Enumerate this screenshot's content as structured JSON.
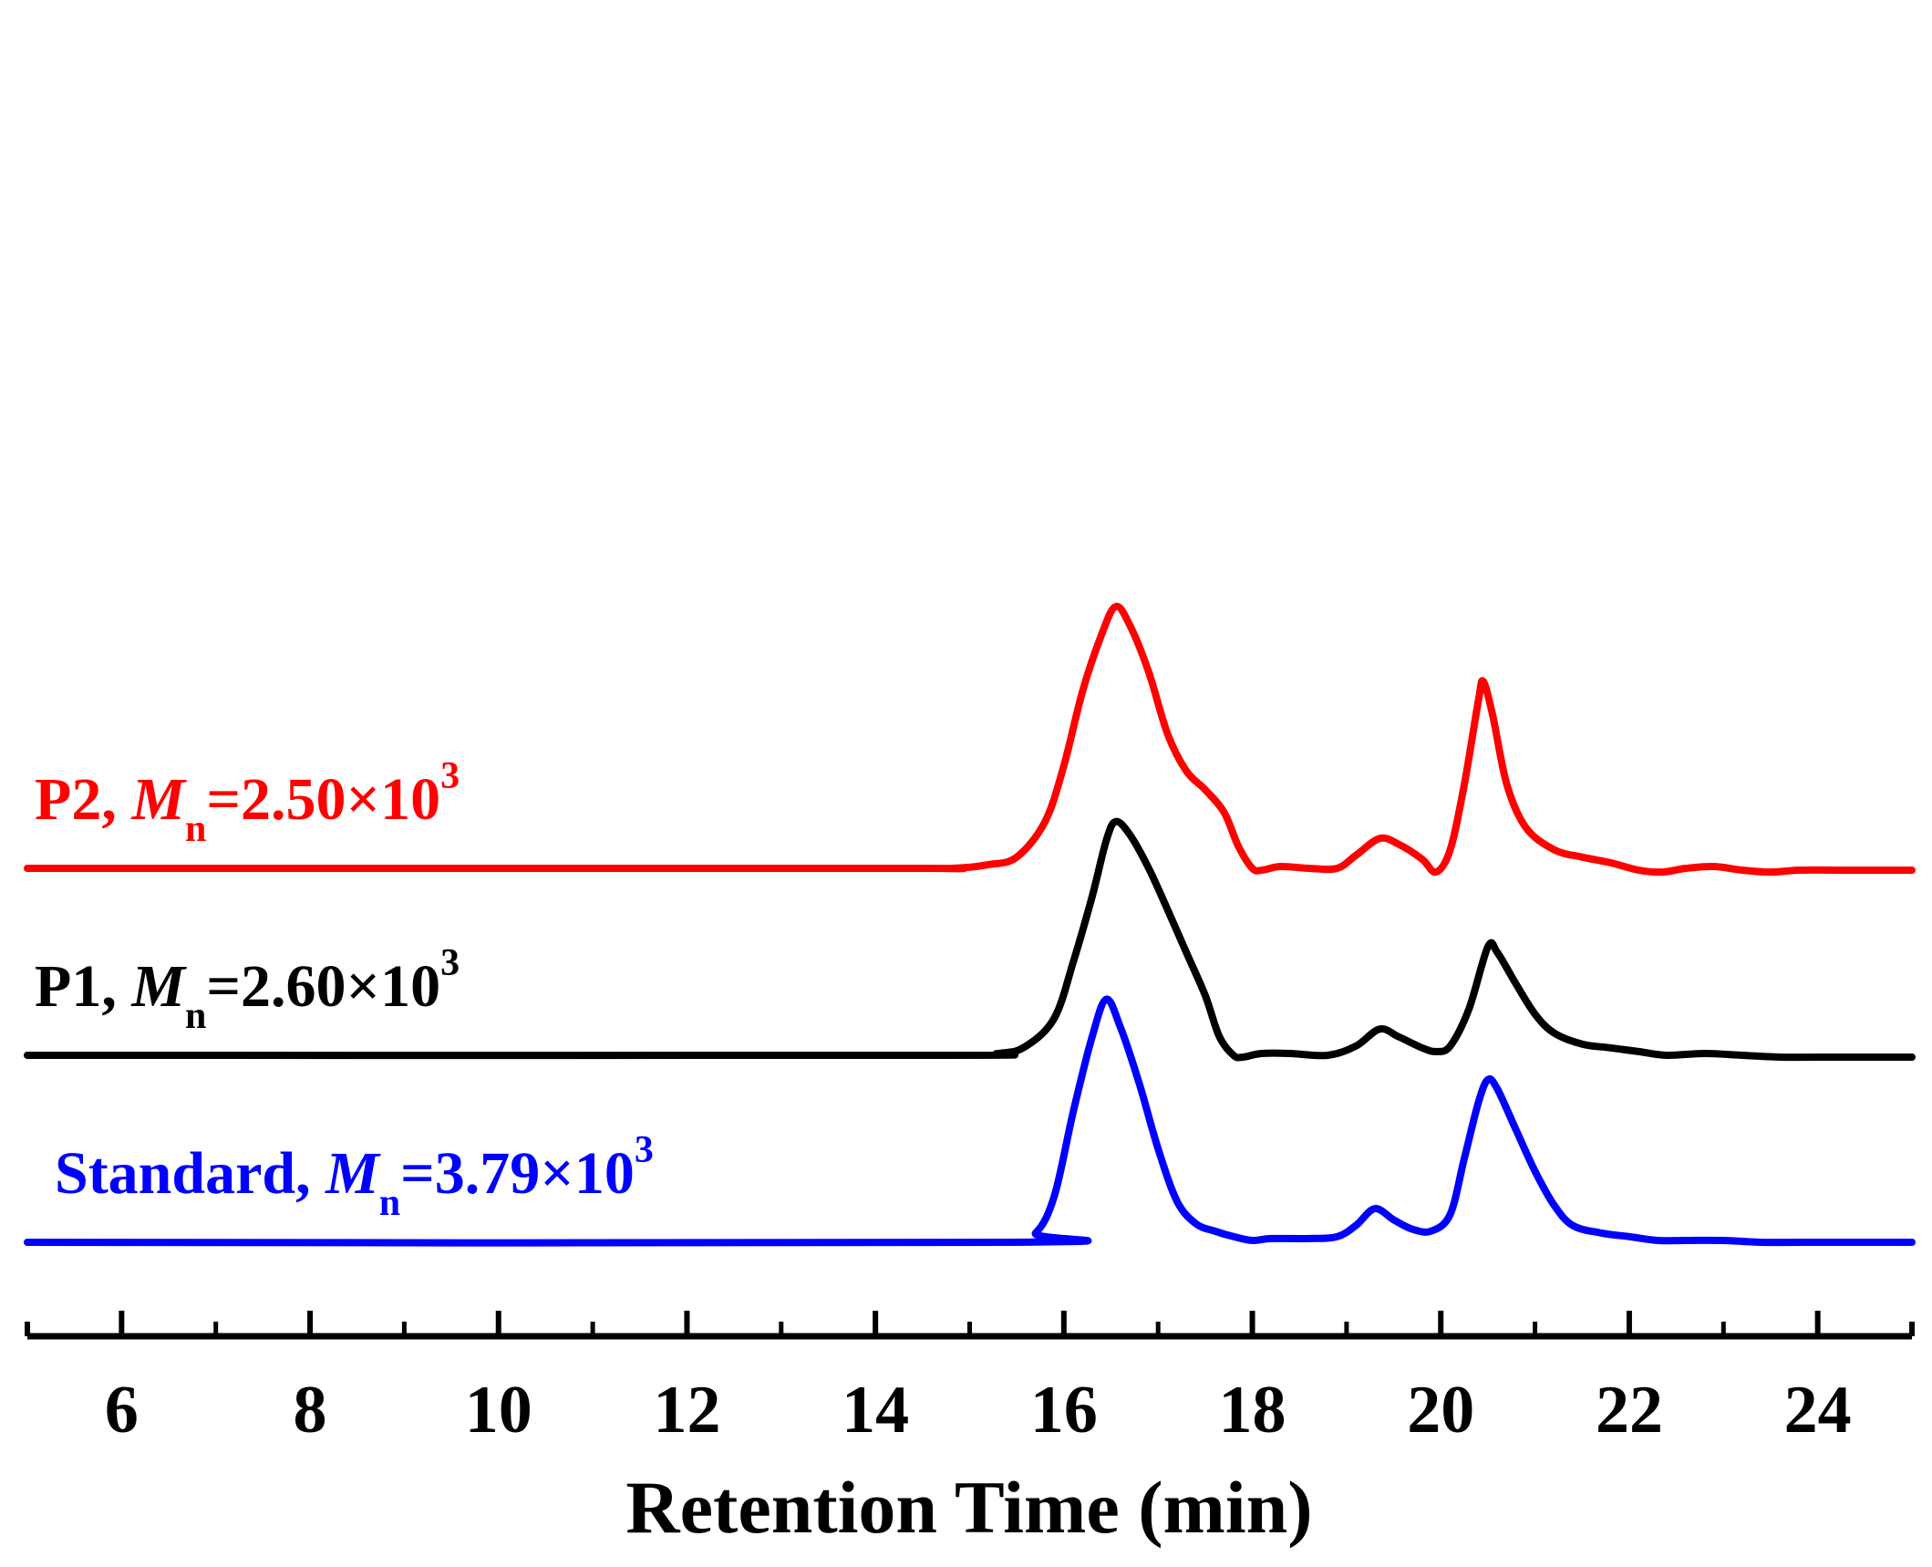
{
  "chart_data": {
    "type": "line",
    "title": "",
    "xlabel": "Retention Time (min)",
    "ylabel": "",
    "xlim": [
      5,
      25
    ],
    "x_ticks": [
      6,
      8,
      10,
      12,
      14,
      16,
      18,
      20,
      22,
      24
    ],
    "x_tick_labels": [
      "6",
      "8",
      "10",
      "12",
      "14",
      "16",
      "18",
      "20",
      "22",
      "24"
    ],
    "y_axis": "none (traces vertically offset, arbitrary units)",
    "grid": false,
    "series": [
      {
        "name": "P2",
        "legend_prefix": "P2, ",
        "legend_mn": "M",
        "legend_sub": "n",
        "legend_value": "=2.50×10",
        "legend_sup": "3",
        "color": "#ff0000",
        "offset": 2.0,
        "x": [
          5.0,
          14.0,
          14.8,
          15.2,
          15.5,
          15.8,
          16.0,
          16.2,
          16.4,
          16.55,
          16.7,
          16.9,
          17.1,
          17.3,
          17.5,
          17.7,
          17.85,
          18.0,
          18.1,
          18.3,
          18.6,
          18.9,
          19.1,
          19.35,
          19.55,
          19.8,
          19.95,
          20.1,
          20.25,
          20.4,
          20.45,
          20.55,
          20.7,
          20.9,
          21.2,
          21.5,
          21.8,
          22.1,
          22.35,
          22.6,
          22.9,
          23.2,
          23.5,
          23.8,
          24.2,
          24.6,
          25.0
        ],
        "y": [
          0.0,
          0.0,
          0.0,
          0.02,
          0.06,
          0.25,
          0.55,
          0.95,
          1.25,
          1.4,
          1.3,
          1.05,
          0.72,
          0.52,
          0.42,
          0.3,
          0.12,
          0.0,
          -0.01,
          0.01,
          0.0,
          0.0,
          0.07,
          0.16,
          0.13,
          0.05,
          -0.02,
          0.1,
          0.45,
          0.9,
          1.0,
          0.82,
          0.45,
          0.22,
          0.1,
          0.06,
          0.03,
          -0.01,
          -0.02,
          0.0,
          0.01,
          -0.01,
          -0.02,
          -0.01,
          -0.01,
          -0.01,
          -0.01
        ]
      },
      {
        "name": "P1",
        "legend_prefix": "P1, ",
        "legend_mn": "M",
        "legend_sub": "n",
        "legend_value": "=2.60×10",
        "legend_sup": "3",
        "color": "#000000",
        "offset": 1.0,
        "x": [
          5.0,
          14.5,
          15.3,
          15.6,
          15.9,
          16.1,
          16.3,
          16.45,
          16.55,
          16.7,
          16.9,
          17.1,
          17.3,
          17.5,
          17.65,
          17.8,
          17.9,
          18.1,
          18.4,
          18.8,
          19.1,
          19.35,
          19.55,
          19.8,
          19.95,
          20.1,
          20.3,
          20.5,
          20.6,
          20.8,
          21.0,
          21.2,
          21.5,
          21.8,
          22.1,
          22.4,
          22.8,
          23.2,
          23.6,
          24.0,
          25.0
        ],
        "y": [
          0.0,
          0.0,
          0.01,
          0.05,
          0.2,
          0.5,
          0.85,
          1.15,
          1.25,
          1.18,
          1.0,
          0.78,
          0.55,
          0.32,
          0.1,
          0.0,
          -0.01,
          0.01,
          0.01,
          0.0,
          0.05,
          0.14,
          0.1,
          0.04,
          0.02,
          0.05,
          0.25,
          0.58,
          0.55,
          0.38,
          0.22,
          0.12,
          0.06,
          0.04,
          0.02,
          0.0,
          0.01,
          0.0,
          -0.01,
          -0.01,
          -0.01
        ]
      },
      {
        "name": "Standard",
        "legend_prefix": "Standard, ",
        "legend_mn": "M",
        "legend_sub": "n",
        "legend_value": "=3.79×10",
        "legend_sup": "3",
        "color": "#0000ff",
        "offset": 0.0,
        "x": [
          5.0,
          15.4,
          15.7,
          15.9,
          16.1,
          16.3,
          16.45,
          16.6,
          16.8,
          17.0,
          17.2,
          17.4,
          17.6,
          17.8,
          18.0,
          18.2,
          18.6,
          18.9,
          19.1,
          19.3,
          19.5,
          19.7,
          19.9,
          20.1,
          20.25,
          20.4,
          20.5,
          20.6,
          20.8,
          21.0,
          21.2,
          21.4,
          21.7,
          22.0,
          22.3,
          22.6,
          23.0,
          23.4,
          23.8,
          24.3,
          25.0
        ],
        "y": [
          0.0,
          0.0,
          0.05,
          0.25,
          0.7,
          1.1,
          1.3,
          1.15,
          0.85,
          0.5,
          0.22,
          0.1,
          0.06,
          0.03,
          0.01,
          0.02,
          0.02,
          0.03,
          0.09,
          0.18,
          0.12,
          0.07,
          0.06,
          0.15,
          0.45,
          0.75,
          0.87,
          0.82,
          0.6,
          0.38,
          0.2,
          0.09,
          0.05,
          0.03,
          0.01,
          0.01,
          0.01,
          0.0,
          0.0,
          0.0,
          0.0
        ]
      }
    ]
  }
}
